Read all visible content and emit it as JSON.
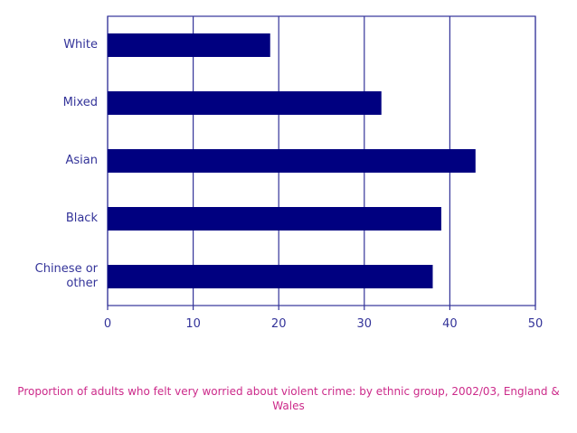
{
  "chart_data": {
    "type": "hbar",
    "caption": "Proportion of adults who felt very worried about violent crime: by ethnic group, 2002/03, England & Wales",
    "categories": [
      "White",
      "Mixed",
      "Asian",
      "Black",
      "Chinese or other"
    ],
    "values": [
      19,
      32,
      43,
      39,
      38
    ],
    "color": "#000080",
    "xlim": [
      0,
      50
    ],
    "xticks": [
      0,
      10,
      20,
      30,
      40,
      50
    ],
    "grid": true
  }
}
